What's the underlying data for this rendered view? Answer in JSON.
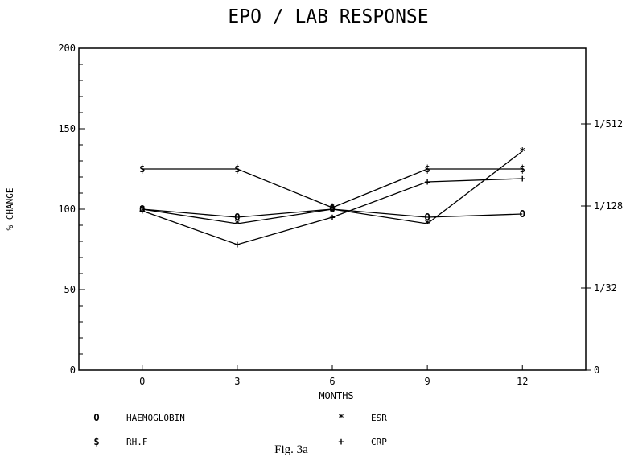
{
  "chart_data": {
    "type": "line",
    "title": "EPO / LAB RESPONSE",
    "xlabel": "MONTHS",
    "ylabel": "% CHANGE",
    "x": [
      0,
      3,
      6,
      9,
      12
    ],
    "xticks": [
      "0",
      "3",
      "6",
      "9",
      "12"
    ],
    "xlim": [
      -2,
      14
    ],
    "ylim": [
      0,
      200
    ],
    "yticks": [
      "0",
      "50",
      "100",
      "150",
      "200"
    ],
    "right_axis": {
      "ticks": [
        {
          "label": "0",
          "y": 0
        },
        {
          "label": "1/32",
          "y": 51
        },
        {
          "label": "1/128",
          "y": 102
        },
        {
          "label": "1/512",
          "y": 153
        }
      ]
    },
    "grid": false,
    "legend_position": "bottom",
    "series": [
      {
        "name": "HAEMOGLOBIN",
        "marker": "O",
        "values": [
          100,
          95,
          100,
          95,
          97
        ]
      },
      {
        "name": "ESR",
        "marker": "*",
        "values": [
          100,
          91,
          100,
          91,
          136
        ]
      },
      {
        "name": "RH.F",
        "marker": "$",
        "values": [
          125,
          125,
          101,
          125,
          125
        ]
      },
      {
        "name": "CRP",
        "marker": "+",
        "values": [
          99,
          78,
          95,
          117,
          119
        ]
      }
    ],
    "caption": "Fig. 3a"
  }
}
